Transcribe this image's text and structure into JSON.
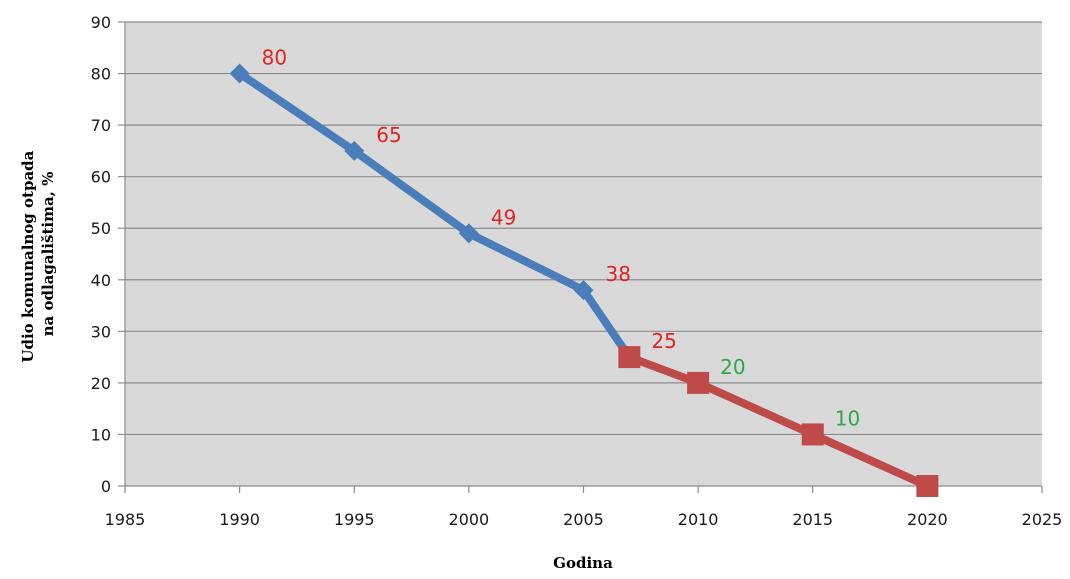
{
  "chart_data": {
    "type": "line",
    "xlabel": "Godina",
    "ylabel_lines": [
      "Udio komunalnog otpada",
      "na odlagalištima, %"
    ],
    "xlim": [
      1985,
      2025
    ],
    "ylim": [
      0,
      90
    ],
    "x_ticks": [
      1985,
      1990,
      1995,
      2000,
      2005,
      2010,
      2015,
      2020,
      2025
    ],
    "y_ticks": [
      0,
      10,
      20,
      30,
      40,
      50,
      60,
      70,
      80,
      90
    ],
    "grid": "horizontal",
    "legend": "none",
    "colors": {
      "plot_background": "#d9d9d9",
      "gridline": "#8c8c8c"
    },
    "series": [
      {
        "marker": "diamond",
        "color": "#4a7ebb",
        "label_color": "#e02424",
        "points": [
          {
            "x": 1990,
            "y": 80,
            "label": "80"
          },
          {
            "x": 1995,
            "y": 65,
            "label": "65"
          },
          {
            "x": 2000,
            "y": 49,
            "label": "49"
          },
          {
            "x": 2005,
            "y": 38,
            "label": "38"
          },
          {
            "x": 2007,
            "y": 25
          }
        ]
      },
      {
        "marker": "square",
        "color": "#be4b48",
        "label_color": "#2ea84a",
        "points": [
          {
            "x": 2007,
            "y": 25,
            "label": "25",
            "label_color": "#e02424"
          },
          {
            "x": 2010,
            "y": 20,
            "label": "20"
          },
          {
            "x": 2015,
            "y": 10,
            "label": "10"
          },
          {
            "x": 2020,
            "y": 0
          }
        ]
      }
    ]
  }
}
